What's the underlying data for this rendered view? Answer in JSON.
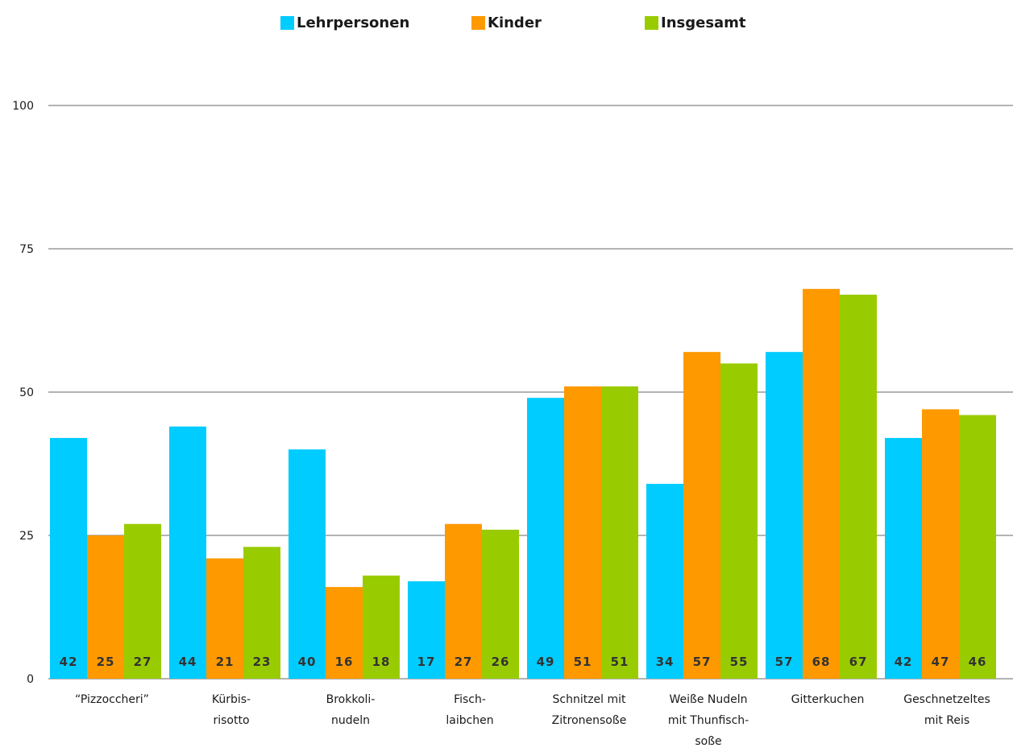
{
  "chart_data": {
    "type": "bar",
    "title": "",
    "xlabel": "",
    "ylabel": "",
    "ylim": [
      0,
      100
    ],
    "yticks": [
      0,
      25,
      50,
      75,
      100
    ],
    "grid": true,
    "legend_position": "top-center",
    "categories": [
      [
        "“Pizzoccheri”"
      ],
      [
        "Kürbis-",
        "risotto"
      ],
      [
        "Brokkoli-",
        "nudeln"
      ],
      [
        "Fisch-",
        "laibchen"
      ],
      [
        "Schnitzel mit",
        "Zitronensoße"
      ],
      [
        "Weiße Nudeln",
        "mit Thunfisch-",
        "soße"
      ],
      [
        "Gitterkuchen"
      ],
      [
        "Geschnetzeltes",
        "mit Reis"
      ]
    ],
    "series": [
      {
        "name": "Lehrpersonen",
        "color": "#00ccff",
        "values": [
          42,
          44,
          40,
          17,
          49,
          34,
          57,
          42
        ]
      },
      {
        "name": "Kinder",
        "color": "#ff9900",
        "values": [
          25,
          21,
          16,
          27,
          51,
          57,
          68,
          47
        ]
      },
      {
        "name": "Insgesamt",
        "color": "#99cc00",
        "values": [
          27,
          23,
          18,
          26,
          51,
          55,
          67,
          46
        ]
      }
    ]
  }
}
